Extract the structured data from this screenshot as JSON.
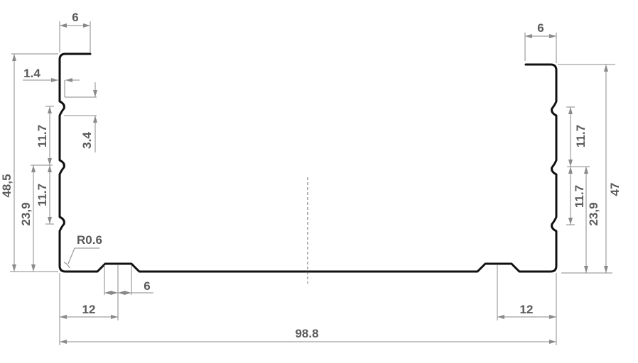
{
  "drawing": {
    "labels": {
      "top_left_flange": "6",
      "top_right_flange": "6",
      "left_total_height": "48,5",
      "right_total_height": "47",
      "left_lower_height": "23,9",
      "right_lower_height": "23,9",
      "left_pitch_upper": "11.7",
      "left_pitch_lower": "11.7",
      "right_pitch_upper": "11.7",
      "right_pitch_lower": "11.7",
      "offset": "1.4",
      "groove_offset": "3.4",
      "radius": "R0.6",
      "bottom_groove_width": "6",
      "bottom_left_offset": "12",
      "bottom_right_offset": "12",
      "total_width": "98.8"
    },
    "colors": {
      "profile": "#111111",
      "dimension": "#8a8a8a",
      "text": "#5a5a5a"
    }
  }
}
